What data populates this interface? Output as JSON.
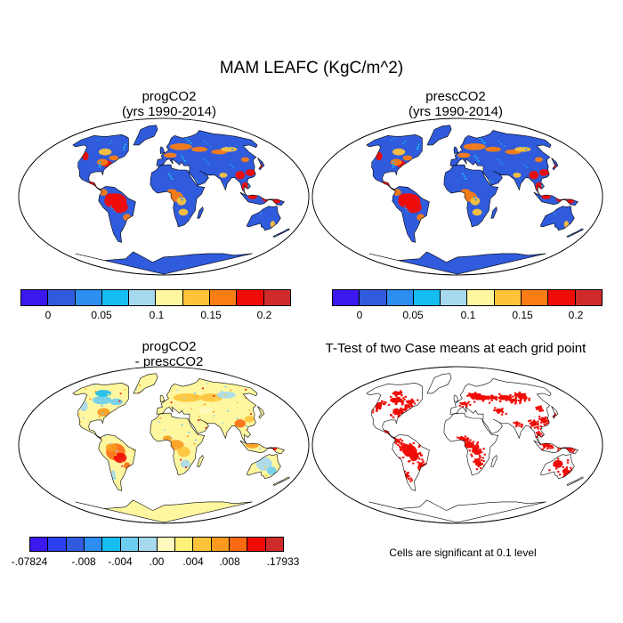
{
  "figure": {
    "title": "MAM LEAFC (KgC/m^2)",
    "note": "Cells are significant at 0.1 level"
  },
  "panels": [
    {
      "id": "prog",
      "title_line1": "progCO2",
      "title_line2": "(yrs 1990-2014)",
      "kind": "field"
    },
    {
      "id": "presc",
      "title_line1": "prescCO2",
      "title_line2": "(yrs 1990-2014)",
      "kind": "field"
    },
    {
      "id": "diff",
      "title_line1": "progCO2",
      "title_line2": "- prescCO2",
      "kind": "difference"
    },
    {
      "id": "ttest",
      "title_line1": "T-Test of two Case means at each grid point",
      "title_line2": "",
      "kind": "significance"
    }
  ],
  "colorbar_main": {
    "colors": [
      "#3b17f0",
      "#2f5bdc",
      "#2b8ef0",
      "#16bdf0",
      "#a6d8ee",
      "#fff7a0",
      "#fdc33a",
      "#fb7d14",
      "#f00c06",
      "#d02b2b"
    ],
    "tick_labels": [
      "0",
      "0.05",
      "0.1",
      "0.15",
      "0.2"
    ]
  },
  "colorbar_diff": {
    "colors": [
      "#3b17f0",
      "#2b3ff0",
      "#2f5bdc",
      "#2b8ef0",
      "#16bdf0",
      "#6dcdf0",
      "#a6d8ee",
      "#fffabe",
      "#fff07a",
      "#fdc33a",
      "#fb9a1e",
      "#fb6a12",
      "#f00c06",
      "#d02b2b"
    ],
    "tick_labels": [
      "-.07824",
      "-.008",
      "-.004",
      ".00",
      ".004",
      ".008",
      ".17933"
    ]
  },
  "map_colors": {
    "ocean": "#ffffff",
    "coast": "#000000",
    "base_field": "#2f5bdc",
    "base_diff": "#fff7a0",
    "significant": "#f00c06"
  }
}
